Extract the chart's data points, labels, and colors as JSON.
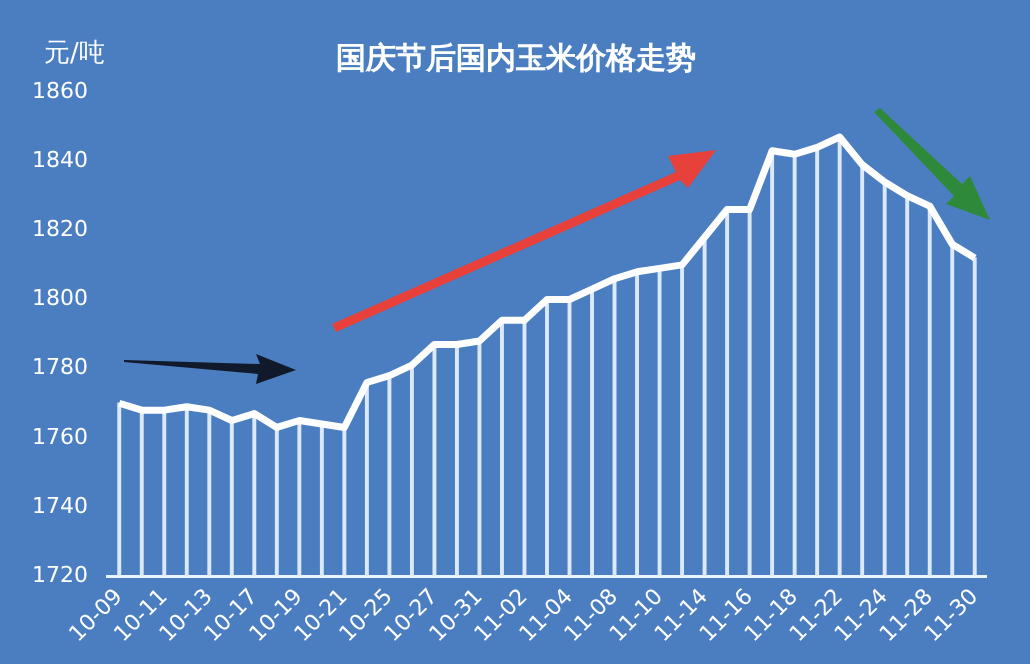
{
  "chart_data": {
    "type": "line",
    "title": "国庆节后国内玉米价格走势",
    "ylabel": "元/吨",
    "categories": [
      "10-09",
      null,
      "10-11",
      null,
      "10-13",
      null,
      "10-17",
      null,
      "10-19",
      null,
      "10-21",
      null,
      "10-25",
      null,
      "10-27",
      null,
      "10-31",
      null,
      "11-02",
      null,
      "11-04",
      null,
      "11-08",
      null,
      "11-10",
      null,
      "11-14",
      null,
      "11-16",
      null,
      "11-18",
      null,
      "11-22",
      null,
      "11-24",
      null,
      "11-28",
      null,
      "11-30"
    ],
    "series": [
      {
        "type": "bar",
        "color": "#dce9fa",
        "values": [
          1770,
          1768,
          1768,
          1769,
          1768,
          1765,
          1767,
          1763,
          1765,
          1764,
          1763,
          1776,
          1778,
          1781,
          1787,
          1787,
          1788,
          1794,
          1794,
          1800,
          1800,
          1803,
          1806,
          1808,
          1809,
          1810,
          1818,
          1826,
          1826,
          1843,
          1842,
          1844,
          1847,
          1839,
          1834,
          1830,
          1827,
          1816,
          1812
        ]
      },
      {
        "color": "#ffffff",
        "values": [
          1770,
          1768,
          1768,
          1769,
          1768,
          1765,
          1767,
          1763,
          1765,
          1764,
          1763,
          1776,
          1778,
          1781,
          1787,
          1787,
          1788,
          1794,
          1794,
          1800,
          1800,
          1803,
          1806,
          1808,
          1809,
          1810,
          1818,
          1826,
          1826,
          1843,
          1842,
          1844,
          1847,
          1839,
          1834,
          1830,
          1827,
          1816,
          1812
        ]
      }
    ],
    "ylim": [
      1720,
      1860
    ],
    "yticks": [
      1720,
      1740,
      1760,
      1780,
      1800,
      1820,
      1840,
      1860
    ],
    "grid": false,
    "legend": false,
    "marker": "none",
    "line_style": "solid"
  }
}
